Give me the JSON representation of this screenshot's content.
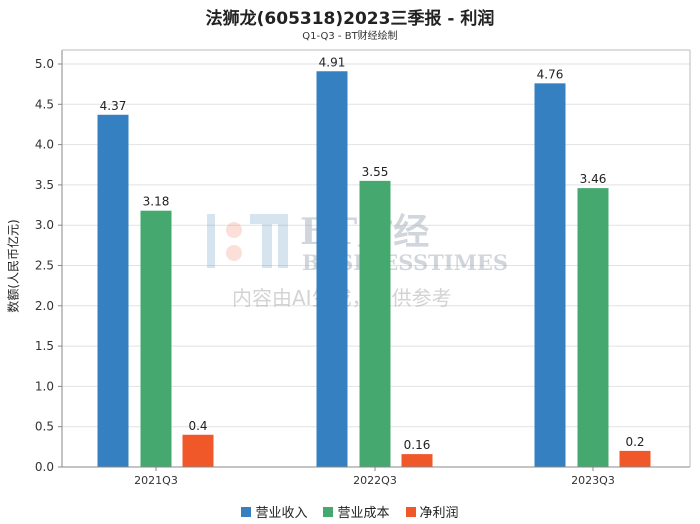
{
  "chart_data": {
    "type": "bar",
    "title": "法狮龙(605318)2023三季报 - 利润",
    "subtitle": "Q1-Q3 - BT财经绘制",
    "ylabel": "数额(人民币亿元)",
    "xlabel": "",
    "categories": [
      "2021Q3",
      "2022Q3",
      "2023Q3"
    ],
    "series": [
      {
        "name": "营业收入",
        "color": "#3580c0",
        "values": [
          4.37,
          4.91,
          4.76
        ]
      },
      {
        "name": "营业成本",
        "color": "#45a86e",
        "values": [
          3.18,
          3.55,
          3.46
        ]
      },
      {
        "name": "净利润",
        "color": "#f0582a",
        "values": [
          0.4,
          0.16,
          0.2
        ]
      }
    ],
    "data_labels": [
      [
        "4.37",
        "4.91",
        "4.76"
      ],
      [
        "3.18",
        "3.55",
        "3.46"
      ],
      [
        "0.4",
        "0.16",
        "0.2"
      ]
    ],
    "ylim": [
      0,
      5.2
    ],
    "yticks": [
      "0.0",
      "0.5",
      "1.0",
      "1.5",
      "2.0",
      "2.5",
      "3.0",
      "3.5",
      "4.0",
      "4.5",
      "5.0"
    ],
    "grid": true,
    "legend_position": "bottom-center"
  },
  "watermark": {
    "brand": "BT财经",
    "brand_en": "BUSINESSTIMES",
    "notice": "内容由AI生成，仅供参考"
  }
}
